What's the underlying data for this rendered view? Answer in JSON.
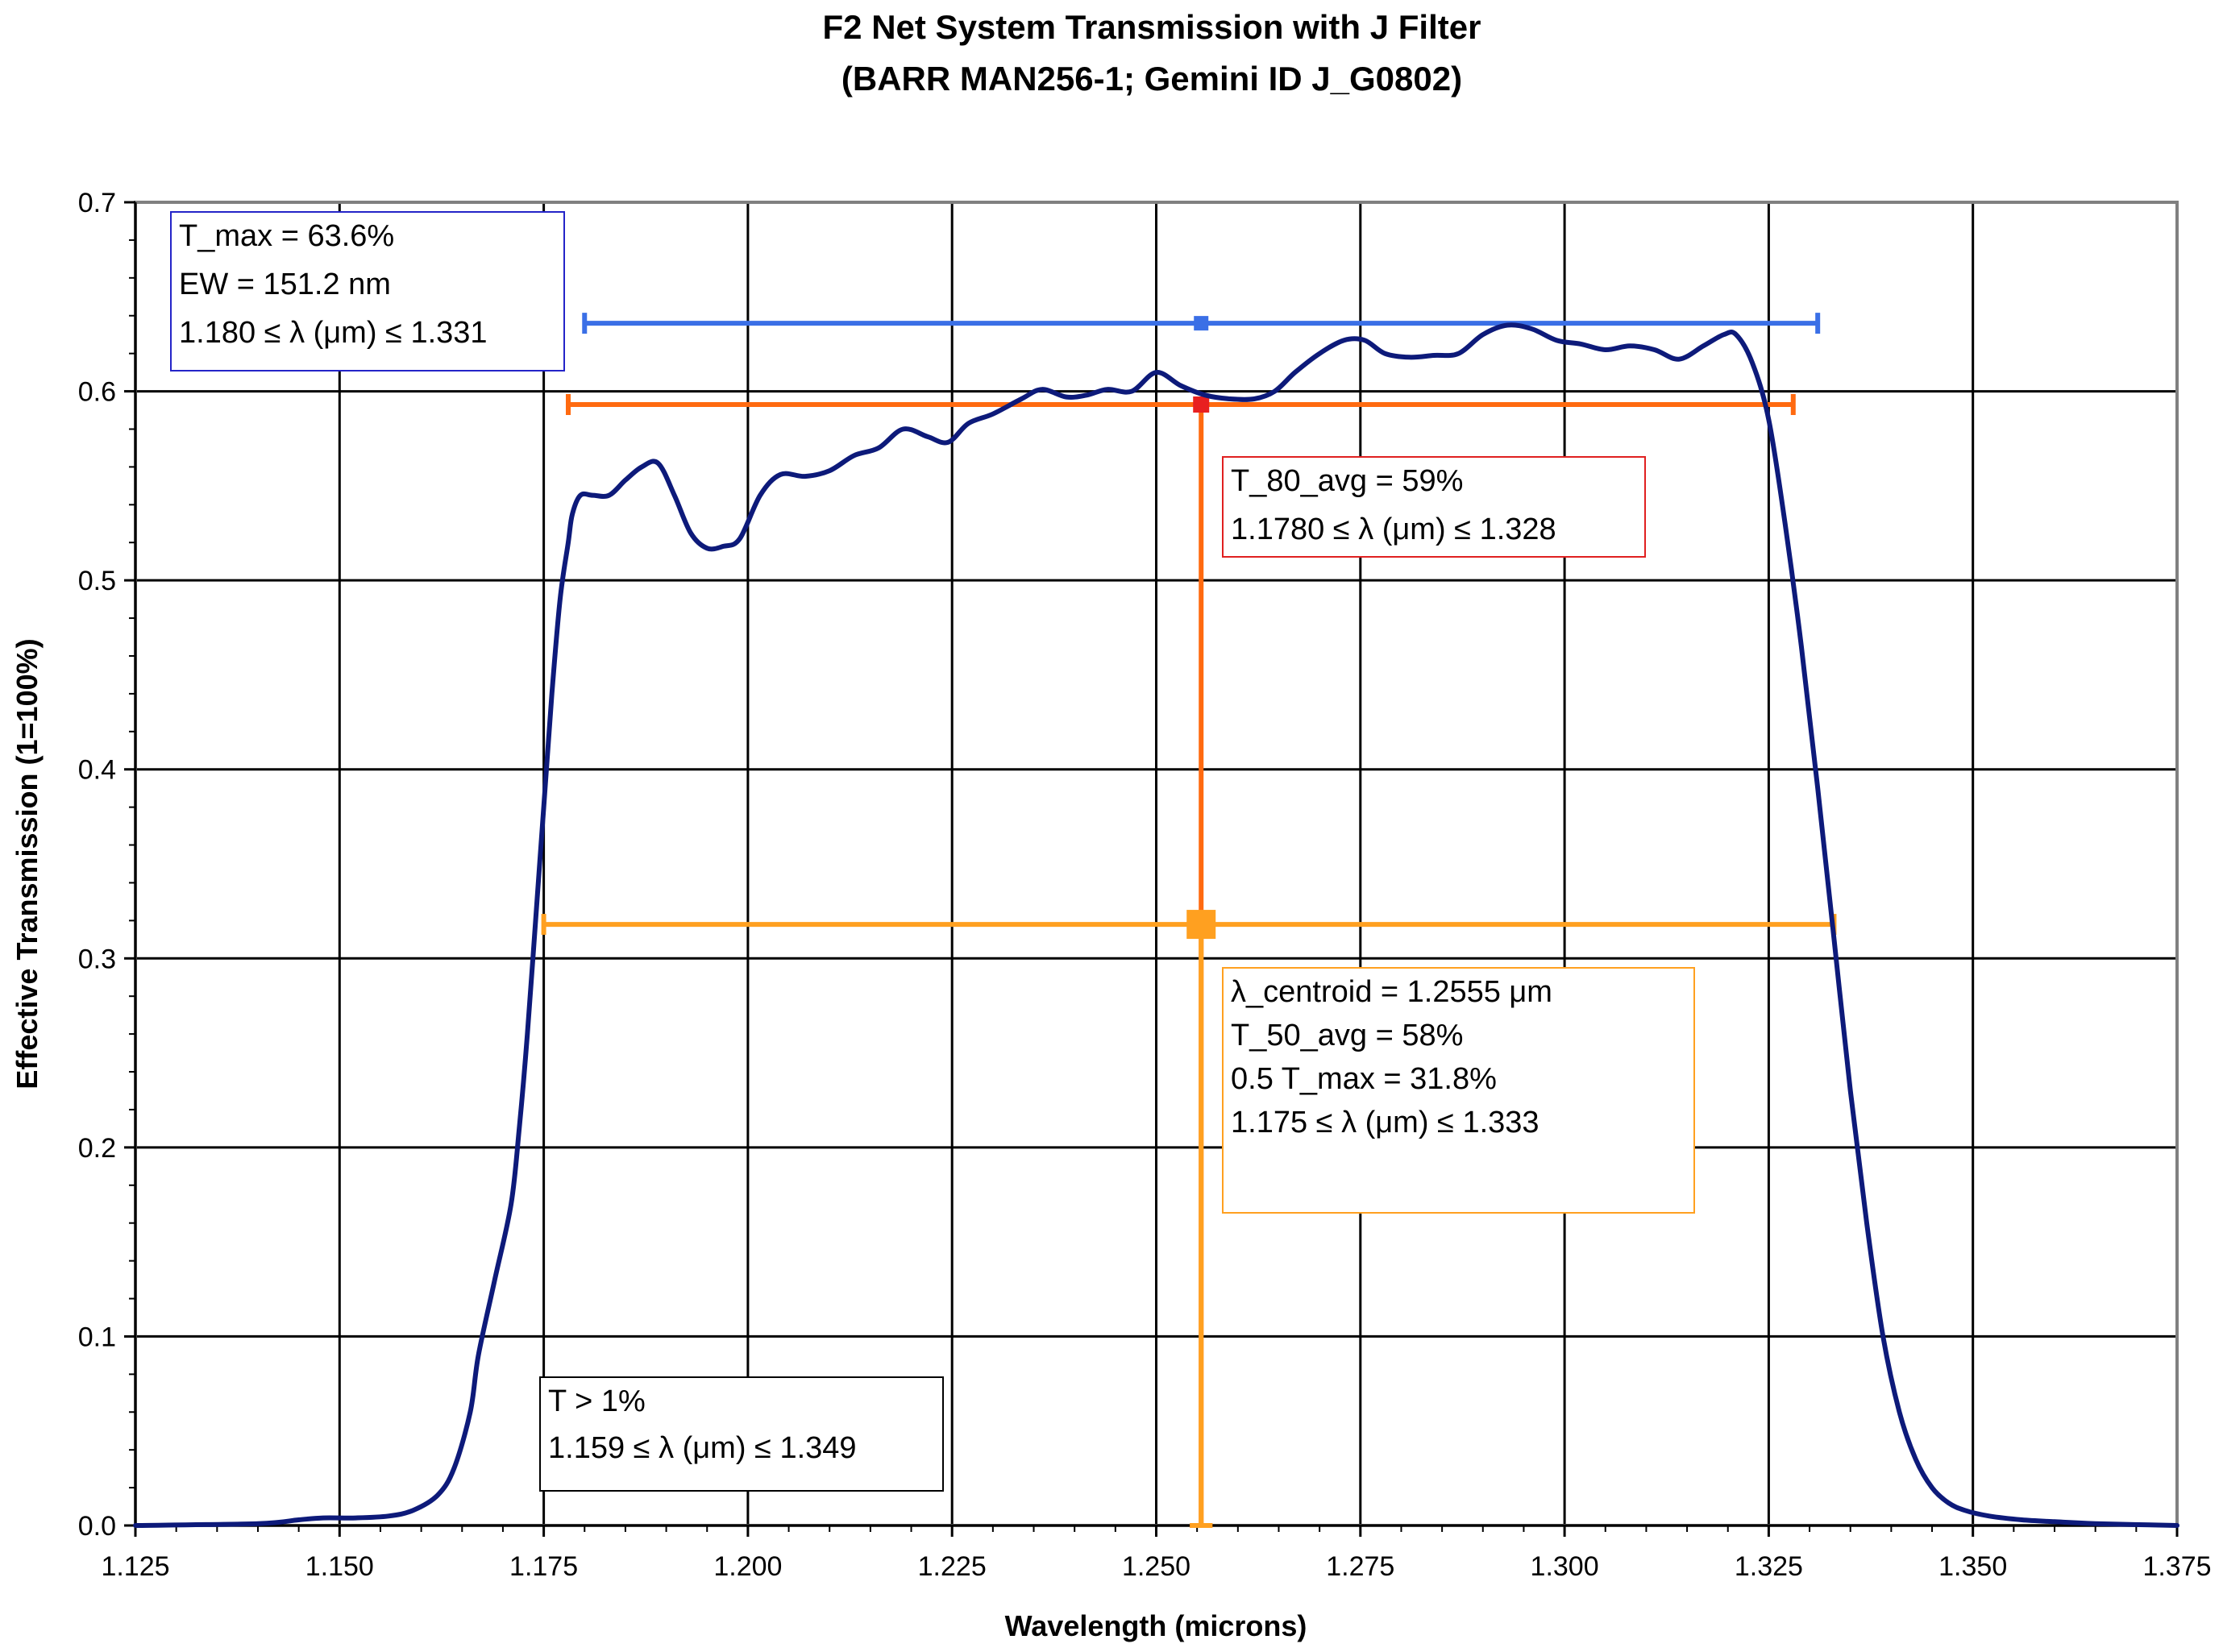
{
  "chart_data": {
    "type": "line",
    "title": "F2 Net System Transmission with J Filter",
    "subtitle": "(BARR MAN256-1; Gemini ID J_G0802)",
    "xlabel": "Wavelength (microns)",
    "ylabel": "Effective Transmission (1=100%)",
    "xlim": [
      1.125,
      1.375
    ],
    "ylim": [
      0,
      0.7
    ],
    "x_ticks": [
      1.125,
      1.15,
      1.175,
      1.2,
      1.225,
      1.25,
      1.275,
      1.3,
      1.325,
      1.35,
      1.375
    ],
    "x_tick_labels": [
      "1.125",
      "1.150",
      "1.175",
      "1.200",
      "1.225",
      "1.250",
      "1.275",
      "1.300",
      "1.325",
      "1.350",
      "1.375"
    ],
    "y_ticks": [
      0,
      0.1,
      0.2,
      0.3,
      0.4,
      0.5,
      0.6,
      0.7
    ],
    "y_tick_labels": [
      "0.0",
      "0.1",
      "0.2",
      "0.3",
      "0.4",
      "0.5",
      "0.6",
      "0.7"
    ],
    "grid": true,
    "colors": {
      "curve": "#0d1a7a",
      "tmax_bar": "#3a6fe6",
      "t80_bar": "#ff6a10",
      "t50_bar": "#ffa020",
      "t80_marker": "#e82020",
      "t50_marker": "#ffa020",
      "tmax_box_border": "#2424c8",
      "t80_box_border": "#e02020",
      "t50_box_border": "#ffa020",
      "t1_box_border": "#000000"
    },
    "series": [
      {
        "x": [
          1.125,
          1.14,
          1.145,
          1.148,
          1.152,
          1.156,
          1.159,
          1.162,
          1.164,
          1.166,
          1.167,
          1.169,
          1.171,
          1.172,
          1.173,
          1.174,
          1.175,
          1.176,
          1.177,
          1.178,
          1.1785,
          1.1795,
          1.181,
          1.183,
          1.185,
          1.187,
          1.189,
          1.191,
          1.193,
          1.195,
          1.197,
          1.199,
          1.2015,
          1.204,
          1.207,
          1.21,
          1.213,
          1.216,
          1.219,
          1.222,
          1.2245,
          1.227,
          1.23,
          1.2335,
          1.236,
          1.239,
          1.2415,
          1.244,
          1.247,
          1.25,
          1.253,
          1.256,
          1.259,
          1.262,
          1.2645,
          1.267,
          1.27,
          1.273,
          1.2755,
          1.278,
          1.281,
          1.284,
          1.287,
          1.29,
          1.293,
          1.296,
          1.299,
          1.302,
          1.305,
          1.308,
          1.311,
          1.314,
          1.317,
          1.3195,
          1.321,
          1.323,
          1.325,
          1.327,
          1.329,
          1.331,
          1.333,
          1.335,
          1.337,
          1.339,
          1.341,
          1.343,
          1.345,
          1.347,
          1.349,
          1.352,
          1.356,
          1.36,
          1.365,
          1.375
        ],
        "values": [
          0.0,
          0.001,
          0.003,
          0.004,
          0.004,
          0.005,
          0.008,
          0.016,
          0.03,
          0.06,
          0.09,
          0.13,
          0.17,
          0.21,
          0.26,
          0.32,
          0.38,
          0.44,
          0.49,
          0.52,
          0.535,
          0.545,
          0.545,
          0.545,
          0.553,
          0.56,
          0.562,
          0.545,
          0.525,
          0.517,
          0.518,
          0.522,
          0.545,
          0.556,
          0.555,
          0.558,
          0.566,
          0.57,
          0.58,
          0.576,
          0.573,
          0.583,
          0.588,
          0.596,
          0.601,
          0.597,
          0.598,
          0.601,
          0.6,
          0.61,
          0.603,
          0.598,
          0.596,
          0.596,
          0.6,
          0.61,
          0.62,
          0.627,
          0.627,
          0.62,
          0.618,
          0.619,
          0.62,
          0.63,
          0.635,
          0.633,
          0.627,
          0.625,
          0.622,
          0.624,
          0.622,
          0.617,
          0.624,
          0.63,
          0.63,
          0.615,
          0.585,
          0.53,
          0.465,
          0.39,
          0.31,
          0.23,
          0.16,
          0.1,
          0.06,
          0.035,
          0.02,
          0.012,
          0.008,
          0.005,
          0.003,
          0.002,
          0.001,
          0.0
        ]
      }
    ],
    "error_bars": [
      {
        "x": 1.2555,
        "y": 0.636,
        "x_low": 1.18,
        "x_high": 1.331
      },
      {
        "x": 1.2555,
        "y": 0.593,
        "x_low": 1.178,
        "x_high": 1.328,
        "y_low": 0.0
      },
      {
        "x": 1.2555,
        "y": 0.318,
        "x_low": 1.175,
        "x_high": 1.333,
        "y_low": 0.0
      }
    ],
    "annotations": {
      "tmax": [
        "T_max = 63.6%",
        "EW = 151.2 nm",
        "1.180 ≤ λ (μm) ≤ 1.331"
      ],
      "t80": [
        "T_80_avg = 59%",
        "1.1780 ≤ λ (μm) ≤ 1.328"
      ],
      "t50": [
        "λ_centroid = 1.2555 μm",
        "T_50_avg = 58%",
        "0.5 T_max = 31.8%",
        "1.175 ≤ λ (μm) ≤ 1.333"
      ],
      "t1": [
        "T > 1%",
        "1.159 ≤ λ (μm) ≤ 1.349"
      ]
    }
  }
}
